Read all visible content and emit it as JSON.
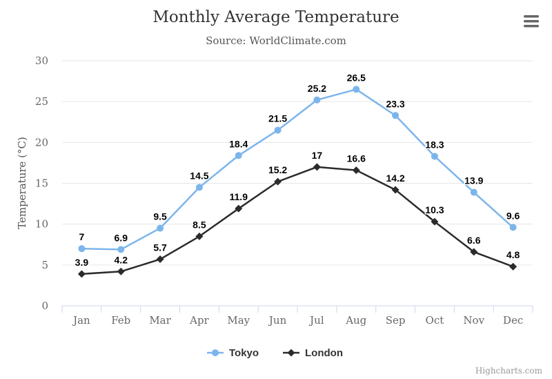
{
  "chart_data": {
    "type": "line",
    "title": "Monthly Average Temperature",
    "subtitle": "Source: WorldClimate.com",
    "xlabel": "",
    "ylabel": "Temperature (°C)",
    "categories": [
      "Jan",
      "Feb",
      "Mar",
      "Apr",
      "May",
      "Jun",
      "Jul",
      "Aug",
      "Sep",
      "Oct",
      "Nov",
      "Dec"
    ],
    "ylim": [
      0,
      30
    ],
    "yticks": [
      "0",
      "5",
      "10",
      "15",
      "20",
      "25",
      "30"
    ],
    "grid": true,
    "legend": "bottom-center",
    "series": [
      {
        "name": "Tokyo",
        "values": [
          7.0,
          6.9,
          9.5,
          14.5,
          18.4,
          21.5,
          25.2,
          26.5,
          23.3,
          18.3,
          13.9,
          9.6
        ],
        "color": "#7cb5ec",
        "marker": "circle"
      },
      {
        "name": "London",
        "values": [
          3.9,
          4.2,
          5.7,
          8.5,
          11.9,
          15.2,
          17.0,
          16.6,
          14.2,
          10.3,
          6.6,
          4.8
        ],
        "color": "#2b2b2b",
        "marker": "diamond"
      }
    ]
  },
  "credits": "Highcharts.com",
  "menu_icon": "hamburger-menu-icon"
}
